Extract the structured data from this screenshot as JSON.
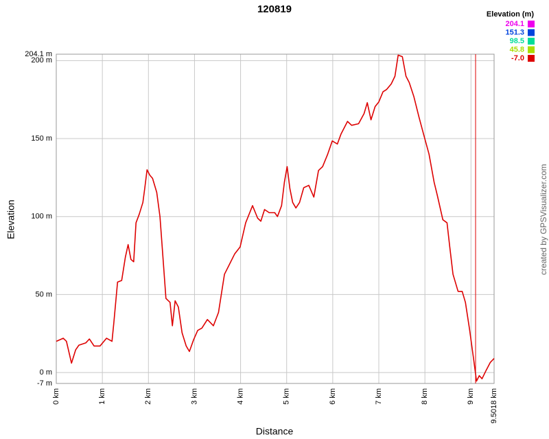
{
  "chart_data": {
    "type": "line",
    "title": "120819",
    "xlabel": "Distance",
    "ylabel": "Elevation",
    "credit": "created by GPSVisualizer.com",
    "x": [
      0,
      0.15,
      0.22,
      0.33,
      0.42,
      0.49,
      0.64,
      0.72,
      0.82,
      0.95,
      1.09,
      1.21,
      1.25,
      1.33,
      1.42,
      1.5,
      1.56,
      1.62,
      1.68,
      1.73,
      1.8,
      1.88,
      1.92,
      1.97,
      2.03,
      2.09,
      2.18,
      2.25,
      2.31,
      2.38,
      2.47,
      2.52,
      2.58,
      2.65,
      2.73,
      2.82,
      2.89,
      2.98,
      3.07,
      3.16,
      3.28,
      3.41,
      3.52,
      3.65,
      3.76,
      3.87,
      3.99,
      4.11,
      4.26,
      4.37,
      4.44,
      4.52,
      4.62,
      4.74,
      4.8,
      4.89,
      4.95,
      5.01,
      5.07,
      5.13,
      5.2,
      5.28,
      5.37,
      5.48,
      5.59,
      5.69,
      5.78,
      5.89,
      5.99,
      6.1,
      6.18,
      6.32,
      6.41,
      6.56,
      6.68,
      6.75,
      6.83,
      6.92,
      7.0,
      7.09,
      7.17,
      7.27,
      7.35,
      7.42,
      7.51,
      7.59,
      7.66,
      7.76,
      7.87,
      7.97,
      8.09,
      8.2,
      8.27,
      8.39,
      8.48,
      8.54,
      8.61,
      8.72,
      8.81,
      8.88,
      8.97,
      9.05,
      9.12,
      9.18,
      9.24,
      9.33,
      9.42,
      9.5018
    ],
    "values": [
      20,
      22,
      20,
      6,
      14.5,
      17.5,
      19,
      21.5,
      17,
      17,
      22,
      20,
      32,
      58,
      59,
      74,
      82,
      72.5,
      71,
      96,
      101.5,
      109,
      118,
      130,
      126.5,
      124.5,
      115.5,
      100,
      76,
      47.5,
      45,
      30,
      46,
      42,
      25.5,
      17,
      13.5,
      21,
      27,
      28.5,
      34,
      30,
      38.5,
      63,
      69.5,
      76,
      80.5,
      96,
      107,
      99,
      97,
      104.5,
      102.5,
      102.5,
      100,
      107,
      122,
      132,
      118,
      109,
      105.5,
      109,
      118.5,
      120,
      112.5,
      129.5,
      132,
      140,
      148.5,
      146.5,
      153,
      161,
      158.5,
      159.5,
      166,
      173,
      162,
      170.5,
      173.5,
      180,
      181.5,
      185,
      190,
      203.5,
      202.5,
      190,
      186,
      177,
      164,
      153,
      140,
      122,
      113.5,
      98,
      96,
      80.5,
      63,
      52,
      52,
      45,
      27.5,
      10,
      -5.5,
      -2,
      -4,
      1.5,
      6.5,
      9
    ],
    "xlim": [
      0,
      9.5018
    ],
    "ylim": [
      -7,
      204.1
    ],
    "xticks": [
      {
        "value": 0,
        "label": "0 km"
      },
      {
        "value": 1,
        "label": "1 km"
      },
      {
        "value": 2,
        "label": "2 km"
      },
      {
        "value": 3,
        "label": "3 km"
      },
      {
        "value": 4,
        "label": "4 km"
      },
      {
        "value": 5,
        "label": "5 km"
      },
      {
        "value": 6,
        "label": "6 km"
      },
      {
        "value": 7,
        "label": "7 km"
      },
      {
        "value": 8,
        "label": "8 km"
      },
      {
        "value": 9,
        "label": "9 km"
      },
      {
        "value": 9.5018,
        "label": "9.5018 km"
      }
    ],
    "yticks": [
      {
        "value": -7,
        "label": "-7 m"
      },
      {
        "value": 0,
        "label": "0 m"
      },
      {
        "value": 50,
        "label": "50 m"
      },
      {
        "value": 100,
        "label": "100 m"
      },
      {
        "value": 150,
        "label": "150 m"
      },
      {
        "value": 200,
        "label": "200 m"
      },
      {
        "value": 204.1,
        "label": "204.1 m"
      }
    ],
    "grid": true,
    "color_scale": {
      "title": "Elevation (m)",
      "stops": [
        {
          "value": 204.1,
          "color": "#ee00ee"
        },
        {
          "value": 151.3,
          "color": "#0044dd"
        },
        {
          "value": 98.5,
          "color": "#00dd99"
        },
        {
          "value": 45.8,
          "color": "#aadd00"
        },
        {
          "value": -7.0,
          "label": "-7.0",
          "color": "#dd0000"
        }
      ]
    },
    "markers": [
      {
        "x": 9.1,
        "color": "#dd0000"
      }
    ]
  }
}
